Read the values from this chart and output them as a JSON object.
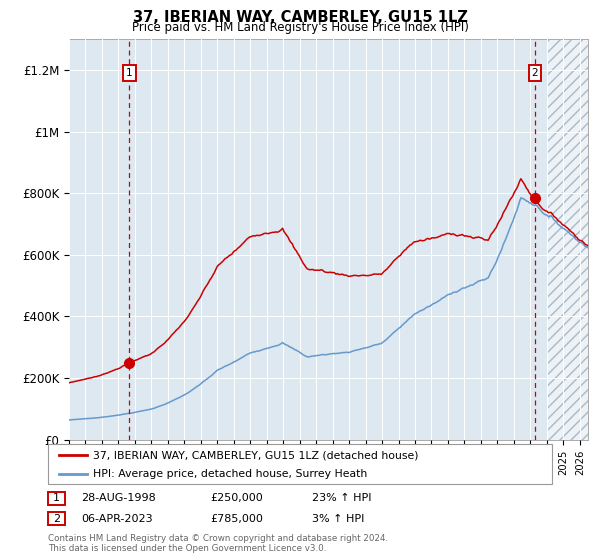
{
  "title": "37, IBERIAN WAY, CAMBERLEY, GU15 1LZ",
  "subtitle": "Price paid vs. HM Land Registry's House Price Index (HPI)",
  "legend_line1": "37, IBERIAN WAY, CAMBERLEY, GU15 1LZ (detached house)",
  "legend_line2": "HPI: Average price, detached house, Surrey Heath",
  "footer": "Contains HM Land Registry data © Crown copyright and database right 2024.\nThis data is licensed under the Open Government Licence v3.0.",
  "annotation1_label": "1",
  "annotation1_date": "28-AUG-1998",
  "annotation1_price": "£250,000",
  "annotation1_hpi": "23% ↑ HPI",
  "annotation2_label": "2",
  "annotation2_date": "06-APR-2023",
  "annotation2_price": "£785,000",
  "annotation2_hpi": "3% ↑ HPI",
  "red_color": "#cc0000",
  "blue_color": "#6699cc",
  "bg_color": "#dde8f0",
  "hatch_color": "#aab8c8",
  "grid_color": "#ffffff",
  "xmin": 1995.0,
  "xmax": 2026.5,
  "ymin": 0,
  "ymax": 1300000,
  "sale1_x": 1998.66,
  "sale1_y": 250000,
  "sale2_x": 2023.27,
  "sale2_y": 785000,
  "dashed_line1_x": 1998.66,
  "dashed_line2_x": 2023.27,
  "hatch_start_x": 2024.0,
  "yticks": [
    0,
    200000,
    400000,
    600000,
    800000,
    1000000,
    1200000
  ],
  "ylabels": [
    "£0",
    "£200K",
    "£400K",
    "£600K",
    "£800K",
    "£1M",
    "£1.2M"
  ]
}
